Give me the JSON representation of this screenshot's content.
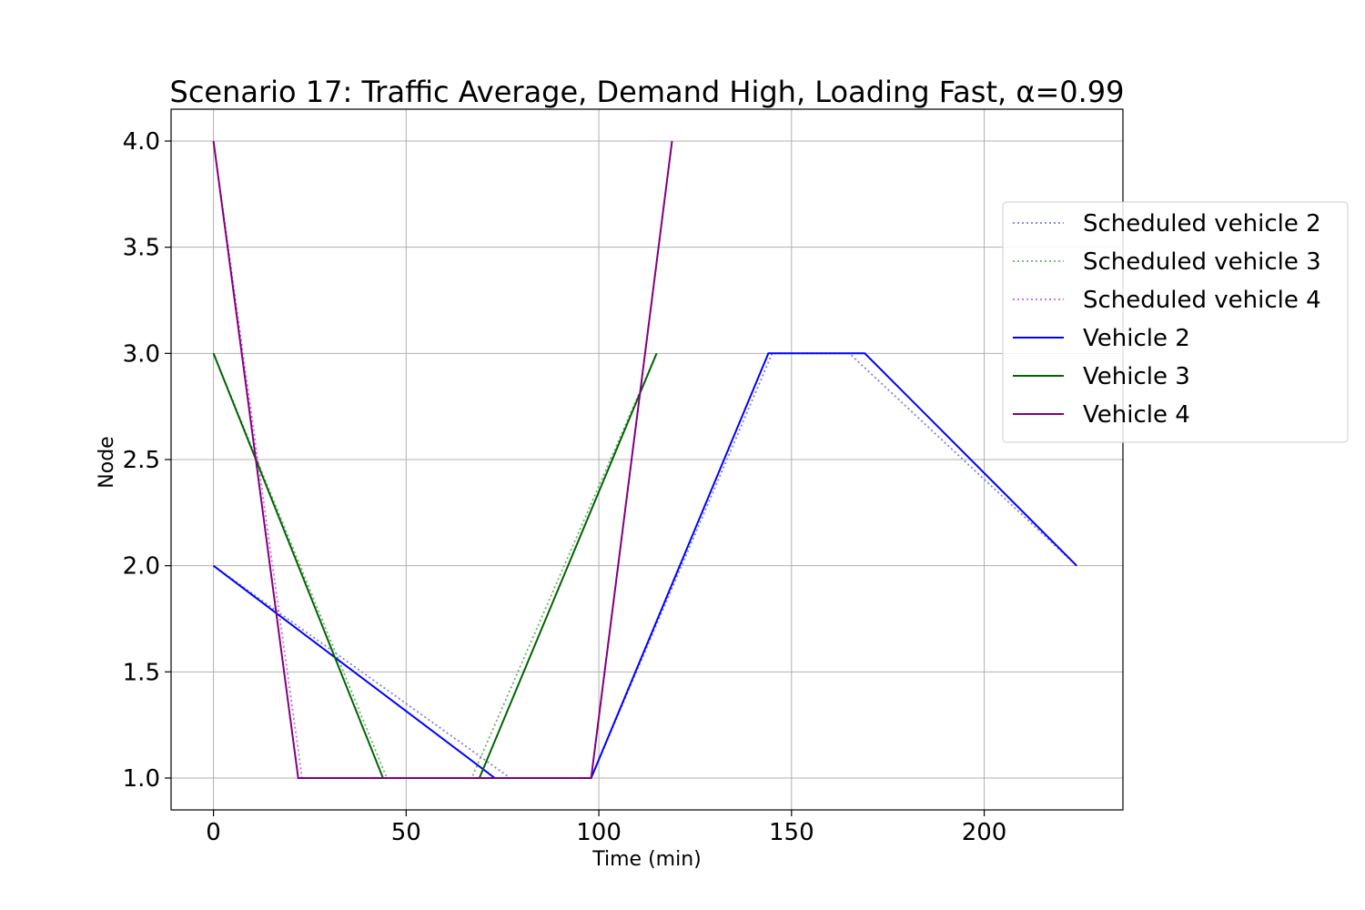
{
  "chart_data": {
    "type": "line",
    "title": "Scenario 17: Traffic Average, Demand High, Loading Fast, α=0.99",
    "xlabel": "Time (min)",
    "ylabel": "Node",
    "xlim": [
      -11,
      236
    ],
    "ylim": [
      0.85,
      4.15
    ],
    "xticks": [
      0,
      50,
      100,
      150,
      200
    ],
    "xtick_labels": [
      "0",
      "50",
      "100",
      "150",
      "200"
    ],
    "yticks": [
      1.0,
      1.5,
      2.0,
      2.5,
      3.0,
      3.5,
      4.0
    ],
    "ytick_labels": [
      "1.0",
      "1.5",
      "2.0",
      "2.5",
      "3.0",
      "3.5",
      "4.0"
    ],
    "grid": true,
    "legend_position": "right, outside the axes",
    "series": [
      {
        "name": "Scheduled vehicle 2",
        "color": "#7b7bf0",
        "style": "dotted",
        "x": [
          0,
          77,
          98,
          145,
          165,
          224
        ],
        "y": [
          2,
          1,
          1,
          3,
          3,
          2
        ]
      },
      {
        "name": "Scheduled vehicle 3",
        "color": "#66b266",
        "style": "dotted",
        "x": [
          0,
          45,
          67,
          115
        ],
        "y": [
          3,
          1,
          1,
          3
        ]
      },
      {
        "name": "Scheduled vehicle 4",
        "color": "#cc66cc",
        "style": "dotted",
        "x": [
          0,
          23,
          98,
          119
        ],
        "y": [
          4,
          1,
          1,
          4
        ]
      },
      {
        "name": "Vehicle 2",
        "color": "#0000ff",
        "style": "solid",
        "x": [
          0,
          73,
          98,
          144,
          169,
          224
        ],
        "y": [
          2,
          1,
          1,
          3,
          3,
          2
        ]
      },
      {
        "name": "Vehicle 3",
        "color": "#006400",
        "style": "solid",
        "x": [
          0,
          44,
          69,
          115
        ],
        "y": [
          3,
          1,
          1,
          3
        ]
      },
      {
        "name": "Vehicle 4",
        "color": "#800080",
        "style": "solid",
        "x": [
          0,
          22,
          98,
          119
        ],
        "y": [
          4,
          1,
          1,
          4
        ]
      }
    ]
  }
}
